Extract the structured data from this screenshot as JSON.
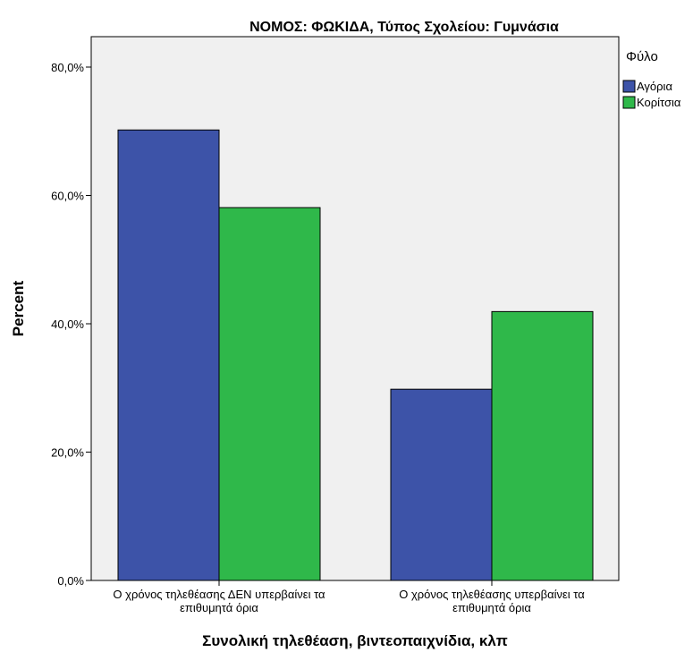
{
  "chart_data": {
    "type": "bar",
    "title": "ΝΟΜΟΣ: ΦΩΚΙΔΑ, Τύπος Σχολείου: Γυμνάσια",
    "xlabel": "Συνολική τηλεθέαση, βιντεοπαιχνίδια, κλπ",
    "ylabel": "Percent",
    "ylim": [
      0,
      80
    ],
    "yticks": [
      0,
      20,
      40,
      60,
      80
    ],
    "ytick_labels": [
      "0,0%",
      "20,0%",
      "40,0%",
      "60,0%",
      "80,0%"
    ],
    "categories": [
      [
        "Ο χρόνος τηλεθέασης ΔΕΝ υπερβαίνει τα",
        "επιθυμητά όρια"
      ],
      [
        "Ο χρόνος τηλεθέασης υπερβαίνει τα",
        "επιθυμητά όρια"
      ]
    ],
    "legend": {
      "title": "Φύλο",
      "position": "right"
    },
    "series": [
      {
        "name": "Αγόρια",
        "color": "#3d53a8",
        "values": [
          70.2,
          29.8
        ]
      },
      {
        "name": "Κορίτσια",
        "color": "#2fb84a",
        "values": [
          58.1,
          41.9
        ]
      }
    ],
    "grid": false,
    "plot_background": "#f0f0f0"
  }
}
